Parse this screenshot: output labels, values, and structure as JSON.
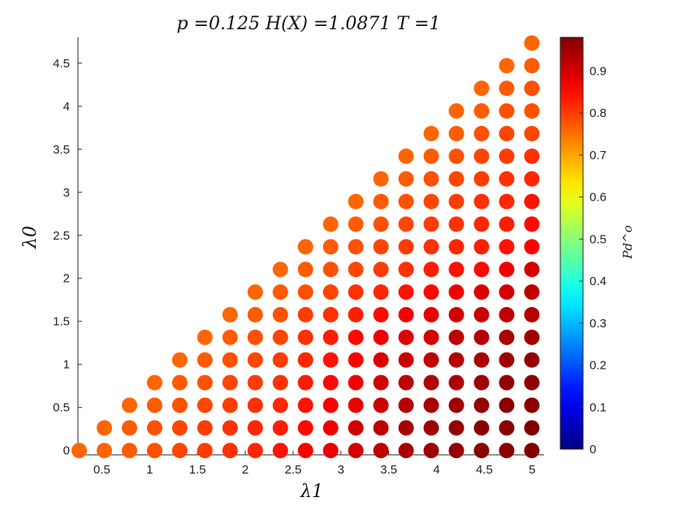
{
  "chart_data": {
    "type": "scatter",
    "title": "p =0.125    H(X) =1.0871    T =1",
    "xlabel": "λ1",
    "ylabel": "λ0",
    "colorbar_label": "Pd^o",
    "xlim": [
      0.25,
      5.125
    ],
    "ylim": [
      -0.05,
      4.8
    ],
    "xticks": [
      "0.5",
      "1",
      "1.5",
      "2",
      "2.5",
      "3",
      "3.5",
      "4",
      "4.5",
      "5"
    ],
    "yticks": [
      "0",
      "0.5",
      "1",
      "1.5",
      "2",
      "2.5",
      "3",
      "3.5",
      "4",
      "4.5"
    ],
    "colorbar_ticks": [
      "0",
      "0.1",
      "0.2",
      "0.3",
      "0.4",
      "0.5",
      "0.6",
      "0.7",
      "0.8",
      "0.9"
    ],
    "colorbar_range": [
      0,
      0.98
    ],
    "colormap": "jet",
    "grid": true,
    "x_step": 0.263,
    "y_step": 0.263,
    "points_note": "grid of points (i*0.263, j*0.263) for j ≤ i, values listed per row j",
    "rows": [
      {
        "y": 0.0,
        "values": [
          0.76,
          0.76,
          0.77,
          0.78,
          0.79,
          0.8,
          0.81,
          0.82,
          0.84,
          0.86,
          0.88,
          0.9,
          0.92,
          0.94,
          0.95,
          0.96,
          0.97,
          0.97,
          0.98
        ]
      },
      {
        "y": 0.263,
        "values": [
          0.76,
          0.77,
          0.78,
          0.79,
          0.8,
          0.81,
          0.82,
          0.83,
          0.85,
          0.87,
          0.9,
          0.92,
          0.94,
          0.95,
          0.96,
          0.97,
          0.97,
          0.98
        ]
      },
      {
        "y": 0.526,
        "values": [
          0.76,
          0.77,
          0.78,
          0.79,
          0.8,
          0.81,
          0.82,
          0.84,
          0.86,
          0.88,
          0.91,
          0.93,
          0.94,
          0.95,
          0.96,
          0.97,
          0.97
        ]
      },
      {
        "y": 0.789,
        "values": [
          0.76,
          0.77,
          0.78,
          0.79,
          0.8,
          0.81,
          0.83,
          0.85,
          0.87,
          0.9,
          0.92,
          0.93,
          0.94,
          0.95,
          0.96,
          0.97
        ]
      },
      {
        "y": 1.052,
        "values": [
          0.76,
          0.77,
          0.78,
          0.79,
          0.8,
          0.82,
          0.84,
          0.86,
          0.89,
          0.91,
          0.92,
          0.93,
          0.94,
          0.95,
          0.96
        ]
      },
      {
        "y": 1.315,
        "values": [
          0.76,
          0.77,
          0.78,
          0.79,
          0.81,
          0.83,
          0.85,
          0.87,
          0.89,
          0.9,
          0.92,
          0.93,
          0.94,
          0.95
        ]
      },
      {
        "y": 1.578,
        "values": [
          0.76,
          0.77,
          0.78,
          0.8,
          0.81,
          0.83,
          0.85,
          0.87,
          0.88,
          0.9,
          0.91,
          0.92,
          0.93
        ]
      },
      {
        "y": 1.841,
        "values": [
          0.76,
          0.77,
          0.78,
          0.79,
          0.81,
          0.82,
          0.84,
          0.85,
          0.87,
          0.89,
          0.9,
          0.92
        ]
      },
      {
        "y": 2.104,
        "values": [
          0.76,
          0.77,
          0.78,
          0.79,
          0.8,
          0.81,
          0.83,
          0.84,
          0.85,
          0.87,
          0.9
        ]
      },
      {
        "y": 2.367,
        "values": [
          0.76,
          0.77,
          0.78,
          0.79,
          0.8,
          0.81,
          0.82,
          0.83,
          0.84,
          0.86
        ]
      },
      {
        "y": 2.63,
        "values": [
          0.76,
          0.77,
          0.78,
          0.79,
          0.8,
          0.81,
          0.82,
          0.83,
          0.85
        ]
      },
      {
        "y": 2.893,
        "values": [
          0.76,
          0.77,
          0.78,
          0.79,
          0.8,
          0.81,
          0.82,
          0.84
        ]
      },
      {
        "y": 3.156,
        "values": [
          0.76,
          0.77,
          0.78,
          0.79,
          0.8,
          0.81,
          0.82
        ]
      },
      {
        "y": 3.419,
        "values": [
          0.76,
          0.77,
          0.78,
          0.79,
          0.8,
          0.81
        ]
      },
      {
        "y": 3.682,
        "values": [
          0.76,
          0.77,
          0.78,
          0.79,
          0.79
        ]
      },
      {
        "y": 3.945,
        "values": [
          0.76,
          0.77,
          0.78,
          0.78
        ]
      },
      {
        "y": 4.208,
        "values": [
          0.76,
          0.77,
          0.78
        ]
      },
      {
        "y": 4.471,
        "values": [
          0.76,
          0.77
        ]
      },
      {
        "y": 4.734,
        "values": [
          0.76
        ]
      }
    ]
  }
}
